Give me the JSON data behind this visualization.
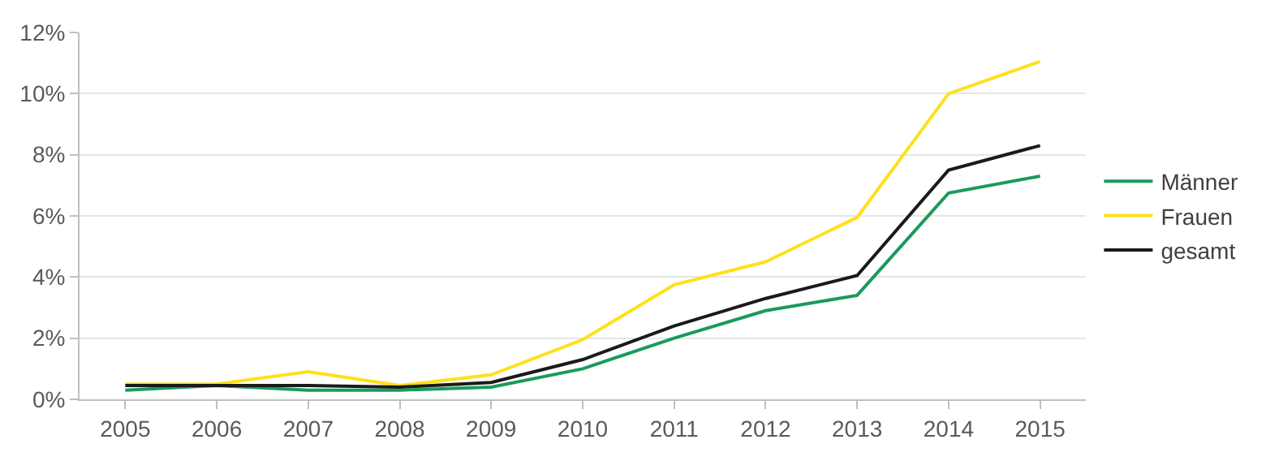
{
  "chart_data": {
    "type": "line",
    "categories": [
      "2005",
      "2006",
      "2007",
      "2008",
      "2009",
      "2010",
      "2011",
      "2012",
      "2013",
      "2014",
      "2015"
    ],
    "series": [
      {
        "name": "Männer",
        "color": "#1a9a5c",
        "values": [
          0.3,
          0.45,
          0.3,
          0.3,
          0.4,
          1.0,
          2.0,
          2.9,
          3.4,
          6.75,
          7.3
        ]
      },
      {
        "name": "Frauen",
        "color": "#ffe01a",
        "values": [
          0.5,
          0.5,
          0.9,
          0.45,
          0.8,
          1.95,
          3.75,
          4.5,
          5.95,
          10.0,
          11.05
        ]
      },
      {
        "name": "gesamt",
        "color": "#1a1a1a",
        "values": [
          0.45,
          0.45,
          0.45,
          0.4,
          0.55,
          1.3,
          2.4,
          3.3,
          4.05,
          7.5,
          8.3
        ]
      }
    ],
    "ylim": [
      0,
      12
    ],
    "yticks": [
      {
        "value": 0,
        "label": "0%"
      },
      {
        "value": 2,
        "label": "2%"
      },
      {
        "value": 4,
        "label": "4%"
      },
      {
        "value": 6,
        "label": "6%"
      },
      {
        "value": 8,
        "label": "8%"
      },
      {
        "value": 10,
        "label": "10%"
      },
      {
        "value": 12,
        "label": "12%"
      }
    ],
    "grid": "y",
    "legend": "right",
    "marker": "none",
    "line_style": "solid"
  }
}
